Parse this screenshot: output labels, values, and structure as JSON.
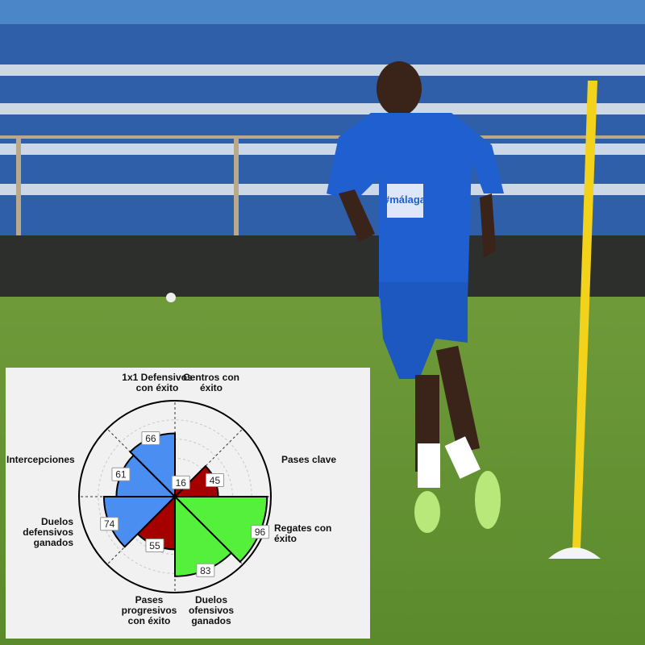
{
  "chart_data": {
    "type": "polar-bar",
    "title": "",
    "rlim": [
      0,
      100
    ],
    "grid": true,
    "categories": [
      "Centros con éxito",
      "Pases clave",
      "Regates con éxito",
      "Duelos ofensivos ganados",
      "Pases progresivos con éxito",
      "Duelos defensivos ganados",
      "Intercepciones",
      "1x1 Defensivos con éxito"
    ],
    "values": [
      16,
      45,
      96,
      83,
      55,
      74,
      61,
      66
    ],
    "colors": [
      "#a50000",
      "#a50000",
      "#55f03c",
      "#55f03c",
      "#a50000",
      "#4a8ef2",
      "#4a8ef2",
      "#4a8ef2"
    ],
    "labels": {
      "centros": "Centros con\néxito",
      "pases_clave": "Pases clave",
      "regates": "Regates con\néxito",
      "duelos_of": "Duelos\nofensivos\nganados",
      "pases_prog": "Pases\nprogresivos\ncon éxito",
      "duelos_def": "Duelos\ndefensivos\nganados",
      "intercepciones": "Intercepciones",
      "defensivos_1x1": "1x1 Defensivos\ncon éxito"
    }
  },
  "photo": {
    "shirt_text": "#málaga"
  }
}
